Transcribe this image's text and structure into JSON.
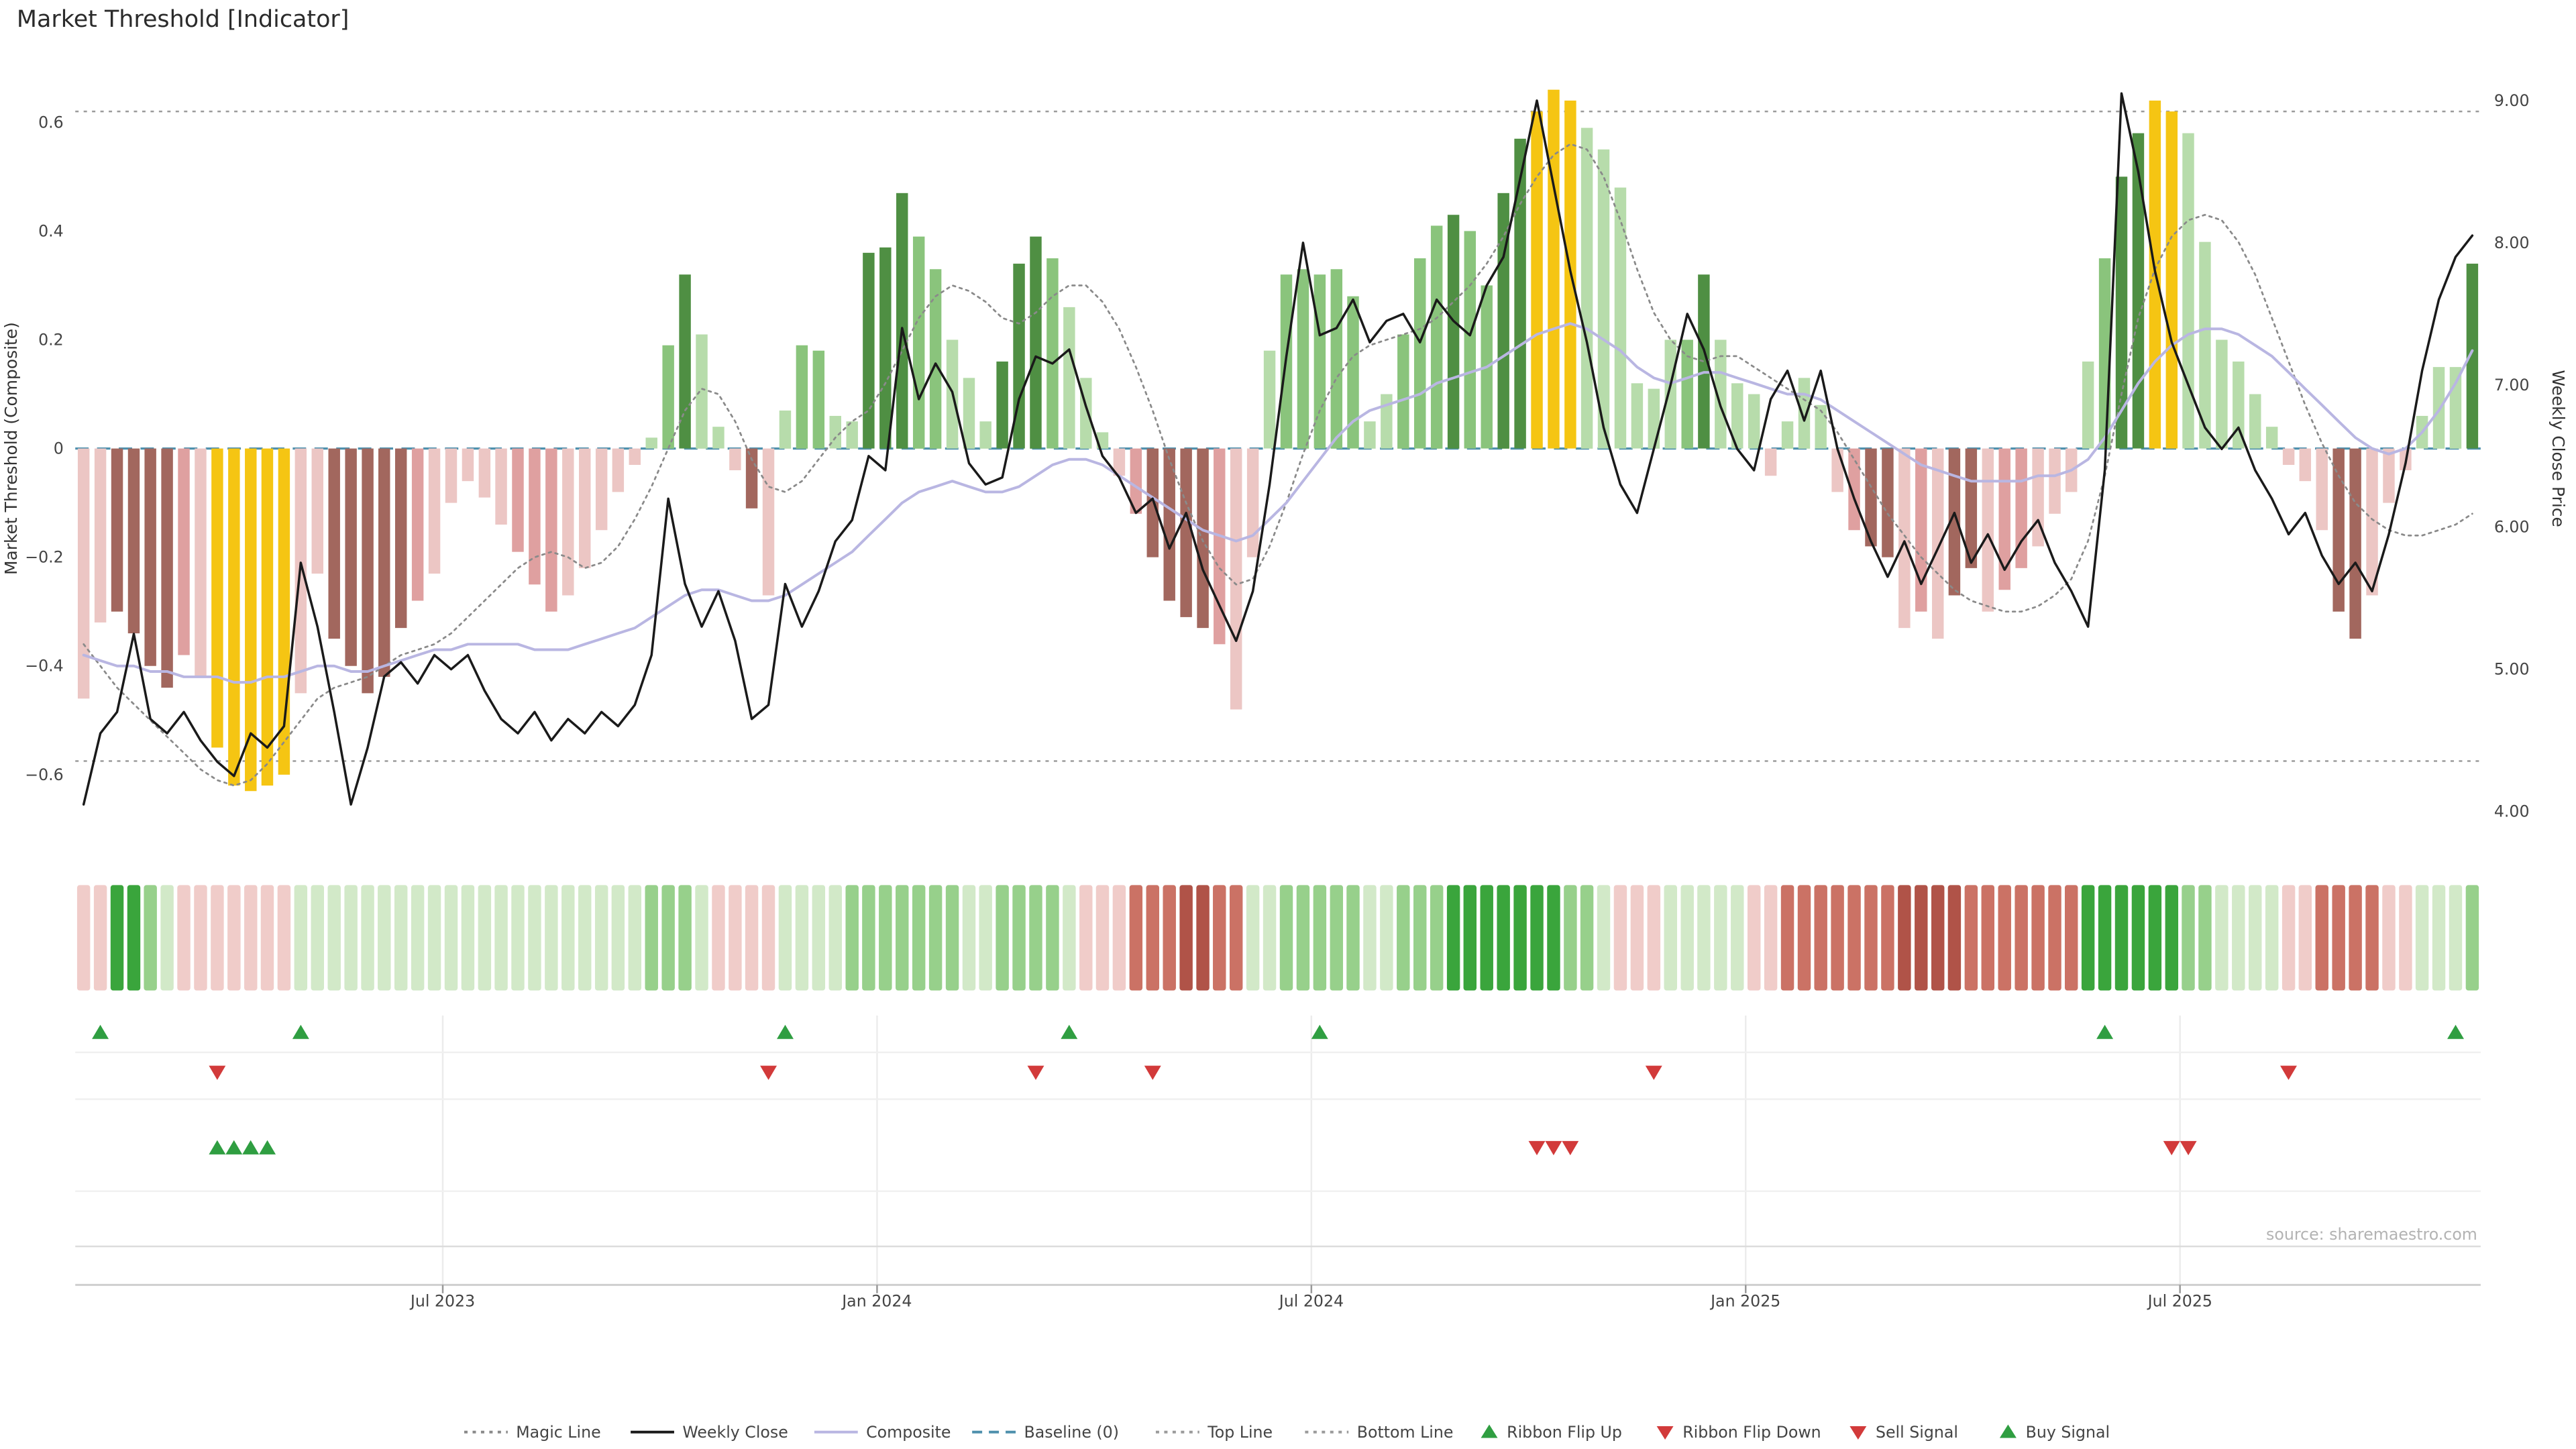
{
  "title": "Market Threshold [Indicator]",
  "source": "source: sharemaestro.com",
  "left_axis": {
    "title": "Market Threshold (Composite)",
    "ticks": [
      {
        "v": 0.6,
        "label": "0.6"
      },
      {
        "v": 0.4,
        "label": "0.4"
      },
      {
        "v": 0.2,
        "label": "0.2"
      },
      {
        "v": 0,
        "label": "0"
      },
      {
        "v": -0.2,
        "label": "−0.2"
      },
      {
        "v": -0.4,
        "label": "−0.4"
      },
      {
        "v": -0.6,
        "label": "−0.6"
      }
    ]
  },
  "right_axis": {
    "title": "Weekly Close Price",
    "ticks": [
      {
        "v": 9,
        "label": "9.00"
      },
      {
        "v": 8,
        "label": "8.00"
      },
      {
        "v": 7,
        "label": "7.00"
      },
      {
        "v": 6,
        "label": "6.00"
      },
      {
        "v": 5,
        "label": "5.00"
      },
      {
        "v": 4,
        "label": "4.00"
      }
    ]
  },
  "x_axis": {
    "ticks": [
      {
        "week": 22,
        "label": "Jul 2023"
      },
      {
        "week": 48,
        "label": "Jan 2024"
      },
      {
        "week": 74,
        "label": "Jul 2024"
      },
      {
        "week": 100,
        "label": "Jan 2025"
      },
      {
        "week": 126,
        "label": "Jul 2025"
      }
    ]
  },
  "colors": {
    "bar_palette": {
      "p1": "#ecc6c4",
      "p2": "#dfa0a0",
      "r": "#a2675e",
      "g1": "#b7dcab",
      "g2": "#8ac47c",
      "g3": "#4f8f43",
      "y": "#f5c513"
    },
    "ribbon_palette": {
      "-3": "#b05348",
      "-2": "#cb7265",
      "-1": "#f0ccc9",
      "1": "#d2e9c8",
      "2": "#97d08b",
      "3": "#3aa53c"
    },
    "magic": "#8a8a8a",
    "composite": "#b9b6e2",
    "weekly_close": "#1a1a1a",
    "baseline": "#4e90ad",
    "top_bottom": "#9b9b9b",
    "signal_green": "#2f9e41",
    "signal_red": "#d23a3a"
  },
  "legend": [
    {
      "label": "Magic Line",
      "glyph": "line-dotted",
      "color": "#8a8a8a"
    },
    {
      "label": "Weekly Close",
      "glyph": "line",
      "color": "#1a1a1a"
    },
    {
      "label": "Composite",
      "glyph": "line",
      "color": "#b9b6e2"
    },
    {
      "label": "Baseline (0)",
      "glyph": "line-dashed",
      "color": "#4e90ad"
    },
    {
      "label": "Top Line",
      "glyph": "line-dotted",
      "color": "#9b9b9b"
    },
    {
      "label": "Bottom Line",
      "glyph": "line-dotted",
      "color": "#9b9b9b"
    },
    {
      "label": "Ribbon Flip Up",
      "glyph": "triangle-up",
      "color": "#2f9e41"
    },
    {
      "label": "Ribbon Flip Down",
      "glyph": "triangle-down",
      "color": "#d23a3a"
    },
    {
      "label": "Sell Signal",
      "glyph": "triangle-down",
      "color": "#d23a3a"
    },
    {
      "label": "Buy Signal",
      "glyph": "triangle-up",
      "color": "#2f9e41"
    }
  ],
  "chart_data": {
    "type": "combo-bar-line",
    "title": "Market Threshold [Indicator]",
    "left_ylabel": "Market Threshold (Composite)",
    "right_ylabel": "Weekly Close Price",
    "x_tick_labels": [
      "Jul 2023",
      "Jan 2024",
      "Jul 2024",
      "Jan 2025",
      "Jul 2025"
    ],
    "left_ylim": [
      -0.76,
      0.72
    ],
    "right_ylim": [
      3.65,
      9.3
    ],
    "legend_position": "bottom",
    "top_line": 0.62,
    "bottom_line": -0.575,
    "baseline": 0,
    "weeks": 144,
    "threshold_bars": {
      "values": [
        -0.46,
        -0.32,
        -0.3,
        -0.34,
        -0.4,
        -0.44,
        -0.38,
        -0.42,
        -0.55,
        -0.62,
        -0.63,
        -0.62,
        -0.6,
        -0.45,
        -0.23,
        -0.35,
        -0.4,
        -0.45,
        -0.42,
        -0.33,
        -0.28,
        -0.23,
        -0.1,
        -0.06,
        -0.09,
        -0.14,
        -0.19,
        -0.25,
        -0.3,
        -0.27,
        -0.22,
        -0.15,
        -0.08,
        -0.03,
        0.02,
        0.19,
        0.32,
        0.21,
        0.04,
        -0.04,
        -0.11,
        -0.27,
        0.07,
        0.19,
        0.18,
        0.06,
        0.05,
        0.36,
        0.37,
        0.47,
        0.39,
        0.33,
        0.2,
        0.13,
        0.05,
        0.16,
        0.34,
        0.39,
        0.35,
        0.26,
        0.13,
        0.03,
        -0.05,
        -0.12,
        -0.2,
        -0.28,
        -0.31,
        -0.33,
        -0.36,
        -0.48,
        -0.2,
        0.18,
        0.32,
        0.33,
        0.32,
        0.33,
        0.28,
        0.05,
        0.1,
        0.21,
        0.35,
        0.41,
        0.43,
        0.4,
        0.3,
        0.47,
        0.57,
        0.62,
        0.66,
        0.64,
        0.59,
        0.55,
        0.48,
        0.12,
        0.11,
        0.2,
        0.2,
        0.32,
        0.2,
        0.12,
        0.1,
        -0.05,
        0.05,
        0.13,
        0.08,
        -0.08,
        -0.15,
        -0.18,
        -0.2,
        -0.33,
        -0.3,
        -0.35,
        -0.27,
        -0.22,
        -0.3,
        -0.26,
        -0.22,
        -0.18,
        -0.12,
        -0.08,
        0.16,
        0.35,
        0.5,
        0.58,
        0.64,
        0.62,
        0.58,
        0.38,
        0.2,
        0.16,
        0.1,
        0.04,
        -0.03,
        -0.06,
        -0.15,
        -0.3,
        -0.35,
        -0.27,
        -0.1,
        -0.04,
        0.06,
        0.15,
        0.15,
        0.34
      ],
      "colors": [
        "p1",
        "p1",
        "r",
        "r",
        "r",
        "r",
        "p2",
        "p1",
        "y",
        "y",
        "y",
        "y",
        "y",
        "p1",
        "p1",
        "r",
        "r",
        "r",
        "r",
        "r",
        "p2",
        "p1",
        "p1",
        "p1",
        "p1",
        "p1",
        "p2",
        "p2",
        "p2",
        "p1",
        "p1",
        "p1",
        "p1",
        "p1",
        "g1",
        "g2",
        "g3",
        "g1",
        "g1",
        "p1",
        "r",
        "p1",
        "g1",
        "g2",
        "g2",
        "g1",
        "g1",
        "g3",
        "g3",
        "g3",
        "g2",
        "g2",
        "g1",
        "g1",
        "g1",
        "g3",
        "g3",
        "g3",
        "g2",
        "g1",
        "g1",
        "g1",
        "p1",
        "p2",
        "r",
        "r",
        "r",
        "r",
        "p2",
        "p1",
        "p1",
        "g1",
        "g2",
        "g2",
        "g2",
        "g2",
        "g2",
        "g1",
        "g1",
        "g2",
        "g2",
        "g2",
        "g3",
        "g2",
        "g2",
        "g3",
        "g3",
        "y",
        "y",
        "y",
        "g1",
        "g1",
        "g1",
        "g1",
        "g1",
        "g1",
        "g2",
        "g3",
        "g1",
        "g1",
        "g1",
        "p1",
        "g1",
        "g1",
        "g1",
        "p1",
        "p2",
        "r",
        "r",
        "p1",
        "p2",
        "p1",
        "r",
        "r",
        "p1",
        "p2",
        "p2",
        "p1",
        "p1",
        "p1",
        "g1",
        "g2",
        "g3",
        "g3",
        "y",
        "y",
        "g1",
        "g1",
        "g1",
        "g1",
        "g1",
        "g1",
        "p1",
        "p1",
        "p1",
        "r",
        "r",
        "p1",
        "p1",
        "p1",
        "g1",
        "g1",
        "g1",
        "g3"
      ]
    },
    "weekly_close": [
      4.05,
      4.55,
      4.7,
      5.25,
      4.65,
      4.55,
      4.7,
      4.5,
      4.35,
      4.25,
      4.55,
      4.45,
      4.6,
      5.75,
      5.3,
      4.7,
      4.05,
      4.45,
      4.95,
      5.05,
      4.9,
      5.1,
      5.0,
      5.1,
      4.85,
      4.65,
      4.55,
      4.7,
      4.5,
      4.65,
      4.55,
      4.7,
      4.6,
      4.75,
      5.1,
      6.2,
      5.6,
      5.3,
      5.55,
      5.2,
      4.65,
      4.75,
      5.6,
      5.3,
      5.55,
      5.9,
      6.05,
      6.5,
      6.4,
      7.4,
      6.9,
      7.15,
      6.95,
      6.45,
      6.3,
      6.35,
      6.9,
      7.2,
      7.15,
      7.25,
      6.85,
      6.5,
      6.35,
      6.1,
      6.2,
      5.85,
      6.1,
      5.7,
      5.45,
      5.2,
      5.55,
      6.3,
      7.2,
      8.0,
      7.35,
      7.4,
      7.6,
      7.3,
      7.45,
      7.5,
      7.3,
      7.6,
      7.45,
      7.35,
      7.7,
      7.9,
      8.45,
      9.0,
      8.4,
      7.8,
      7.3,
      6.7,
      6.3,
      6.1,
      6.55,
      7.0,
      7.5,
      7.25,
      6.85,
      6.55,
      6.4,
      6.9,
      7.1,
      6.75,
      7.1,
      6.55,
      6.2,
      5.9,
      5.65,
      5.9,
      5.6,
      5.85,
      6.1,
      5.75,
      5.95,
      5.7,
      5.9,
      6.05,
      5.75,
      5.55,
      5.3,
      6.4,
      9.05,
      8.5,
      7.8,
      7.3,
      7.0,
      6.7,
      6.55,
      6.7,
      6.4,
      6.2,
      5.95,
      6.1,
      5.8,
      5.6,
      5.75,
      5.55,
      5.95,
      6.45,
      7.1,
      7.6,
      7.9,
      8.05
    ],
    "composite": [
      -0.38,
      -0.39,
      -0.4,
      -0.4,
      -0.41,
      -0.41,
      -0.42,
      -0.42,
      -0.42,
      -0.43,
      -0.43,
      -0.42,
      -0.42,
      -0.41,
      -0.4,
      -0.4,
      -0.41,
      -0.41,
      -0.4,
      -0.39,
      -0.38,
      -0.37,
      -0.37,
      -0.36,
      -0.36,
      -0.36,
      -0.36,
      -0.37,
      -0.37,
      -0.37,
      -0.36,
      -0.35,
      -0.34,
      -0.33,
      -0.31,
      -0.29,
      -0.27,
      -0.26,
      -0.26,
      -0.27,
      -0.28,
      -0.28,
      -0.27,
      -0.25,
      -0.23,
      -0.21,
      -0.19,
      -0.16,
      -0.13,
      -0.1,
      -0.08,
      -0.07,
      -0.06,
      -0.07,
      -0.08,
      -0.08,
      -0.07,
      -0.05,
      -0.03,
      -0.02,
      -0.02,
      -0.03,
      -0.05,
      -0.07,
      -0.09,
      -0.11,
      -0.13,
      -0.15,
      -0.16,
      -0.17,
      -0.16,
      -0.13,
      -0.1,
      -0.06,
      -0.02,
      0.02,
      0.05,
      0.07,
      0.08,
      0.09,
      0.1,
      0.12,
      0.13,
      0.14,
      0.15,
      0.17,
      0.19,
      0.21,
      0.22,
      0.23,
      0.22,
      0.2,
      0.18,
      0.15,
      0.13,
      0.12,
      0.13,
      0.14,
      0.14,
      0.13,
      0.12,
      0.11,
      0.1,
      0.1,
      0.09,
      0.07,
      0.05,
      0.03,
      0.01,
      -0.01,
      -0.03,
      -0.04,
      -0.05,
      -0.06,
      -0.06,
      -0.06,
      -0.06,
      -0.05,
      -0.05,
      -0.04,
      -0.02,
      0.02,
      0.07,
      0.12,
      0.16,
      0.19,
      0.21,
      0.22,
      0.22,
      0.21,
      0.19,
      0.17,
      0.14,
      0.11,
      0.08,
      0.05,
      0.02,
      0.0,
      -0.01,
      0.0,
      0.03,
      0.07,
      0.12,
      0.18
    ],
    "magic_line": [
      -0.36,
      -0.4,
      -0.44,
      -0.47,
      -0.5,
      -0.53,
      -0.56,
      -0.59,
      -0.61,
      -0.62,
      -0.61,
      -0.58,
      -0.54,
      -0.5,
      -0.46,
      -0.44,
      -0.43,
      -0.42,
      -0.4,
      -0.38,
      -0.37,
      -0.36,
      -0.34,
      -0.31,
      -0.28,
      -0.25,
      -0.22,
      -0.2,
      -0.19,
      -0.2,
      -0.22,
      -0.21,
      -0.18,
      -0.13,
      -0.07,
      0.0,
      0.07,
      0.11,
      0.1,
      0.05,
      -0.02,
      -0.07,
      -0.08,
      -0.06,
      -0.02,
      0.02,
      0.05,
      0.07,
      0.12,
      0.18,
      0.24,
      0.28,
      0.3,
      0.29,
      0.27,
      0.24,
      0.23,
      0.25,
      0.28,
      0.3,
      0.3,
      0.27,
      0.22,
      0.15,
      0.07,
      -0.02,
      -0.1,
      -0.17,
      -0.22,
      -0.25,
      -0.24,
      -0.18,
      -0.1,
      -0.01,
      0.07,
      0.13,
      0.17,
      0.19,
      0.2,
      0.21,
      0.22,
      0.24,
      0.27,
      0.3,
      0.34,
      0.39,
      0.45,
      0.5,
      0.54,
      0.56,
      0.55,
      0.5,
      0.42,
      0.33,
      0.25,
      0.2,
      0.17,
      0.16,
      0.17,
      0.17,
      0.15,
      0.13,
      0.11,
      0.09,
      0.07,
      0.03,
      -0.02,
      -0.07,
      -0.12,
      -0.16,
      -0.2,
      -0.23,
      -0.26,
      -0.28,
      -0.29,
      -0.3,
      -0.3,
      -0.29,
      -0.27,
      -0.24,
      -0.17,
      -0.05,
      0.1,
      0.24,
      0.33,
      0.39,
      0.42,
      0.43,
      0.42,
      0.38,
      0.32,
      0.24,
      0.16,
      0.08,
      0.01,
      -0.05,
      -0.1,
      -0.13,
      -0.15,
      -0.16,
      -0.16,
      -0.15,
      -0.14,
      -0.12
    ],
    "ribbon": [
      -1,
      -1,
      3,
      3,
      2,
      1,
      -1,
      -1,
      -1,
      -1,
      -1,
      -1,
      -1,
      1,
      1,
      1,
      1,
      1,
      1,
      1,
      1,
      1,
      1,
      1,
      1,
      1,
      1,
      1,
      1,
      1,
      1,
      1,
      1,
      1,
      2,
      2,
      2,
      1,
      -1,
      -1,
      -1,
      -1,
      1,
      1,
      1,
      1,
      2,
      2,
      2,
      2,
      2,
      2,
      2,
      1,
      1,
      2,
      2,
      2,
      2,
      1,
      -1,
      -1,
      -1,
      -2,
      -2,
      -2,
      -3,
      -3,
      -2,
      -2,
      1,
      1,
      2,
      2,
      2,
      2,
      2,
      1,
      1,
      2,
      2,
      2,
      3,
      3,
      3,
      3,
      3,
      3,
      3,
      2,
      2,
      1,
      -1,
      -1,
      -1,
      1,
      1,
      1,
      1,
      1,
      -1,
      -1,
      -2,
      -2,
      -2,
      -2,
      -2,
      -2,
      -2,
      -3,
      -3,
      -3,
      -3,
      -2,
      -2,
      -2,
      -2,
      -2,
      -2,
      -2,
      3,
      3,
      3,
      3,
      3,
      3,
      2,
      2,
      1,
      1,
      1,
      1,
      -1,
      -1,
      -2,
      -2,
      -2,
      -2,
      -1,
      -1,
      1,
      1,
      1,
      2
    ],
    "signals": {
      "ribbon_flip_up_weeks": [
        1,
        13,
        42,
        59,
        74,
        121,
        142
      ],
      "ribbon_flip_down_weeks": [
        8,
        41,
        57,
        64,
        94,
        132
      ],
      "buy_signal_weeks": [
        8,
        9,
        10,
        11
      ],
      "sell_signal_weeks": [
        87,
        88,
        89,
        125,
        126
      ]
    }
  }
}
